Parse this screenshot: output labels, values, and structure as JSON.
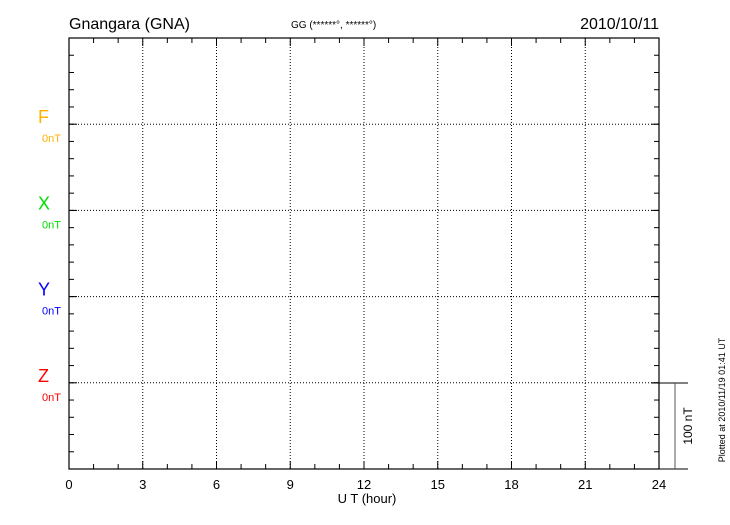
{
  "header": {
    "station": "Gnangara (GNA)",
    "coords": "GG (******°, ******°)",
    "date": "2010/10/11"
  },
  "footer": {
    "plotted": "Plotted at 2010/11/19 01:41 UT",
    "scale_label": "100 nT"
  },
  "chart_data": {
    "type": "line",
    "xlabel": "U T (hour)",
    "xlim": [
      0,
      24
    ],
    "xticks": [
      "0",
      "3",
      "6",
      "9",
      "12",
      "15",
      "18",
      "21",
      "24"
    ],
    "grid": true,
    "scale_nT": 100,
    "series": [
      {
        "name": "F",
        "offset_label": "0nT",
        "color": "#ffb000",
        "values": []
      },
      {
        "name": "X",
        "offset_label": "0nT",
        "color": "#00dd00",
        "values": []
      },
      {
        "name": "Y",
        "offset_label": "0nT",
        "color": "#0000ff",
        "values": []
      },
      {
        "name": "Z",
        "offset_label": "0nT",
        "color": "#ff0000",
        "values": []
      }
    ]
  }
}
